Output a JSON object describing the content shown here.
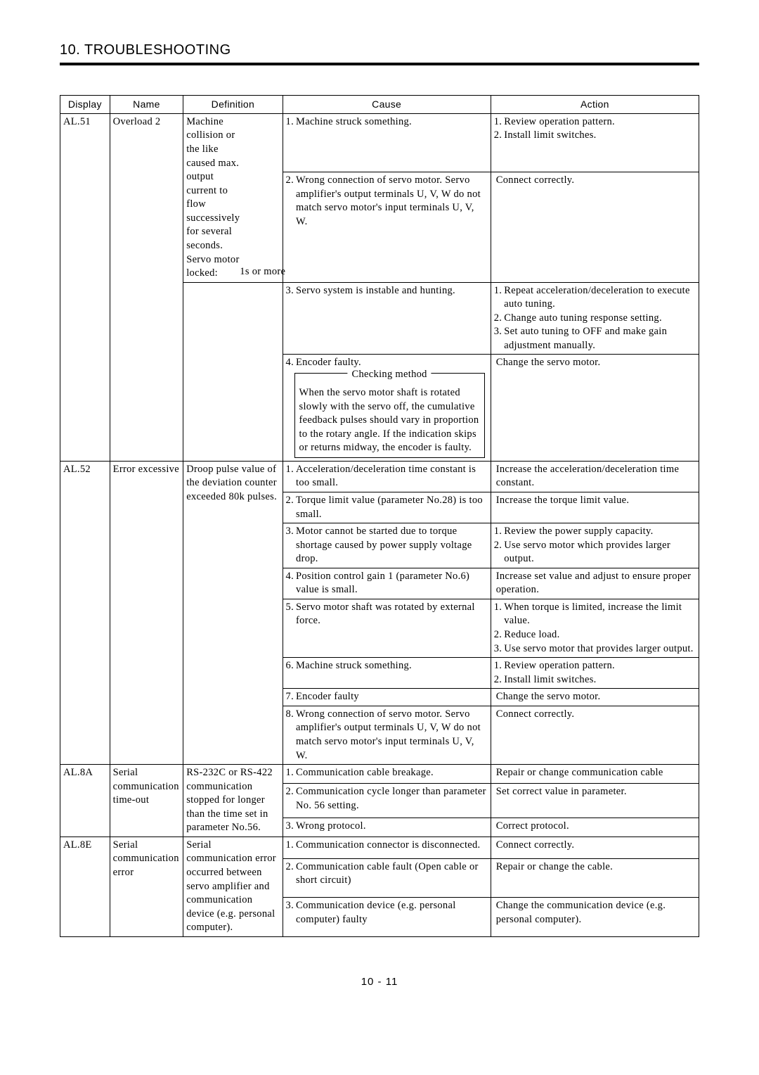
{
  "page": {
    "title": "10. TROUBLESHOOTING",
    "page_number": "10 -  11"
  },
  "columns": {
    "display": "Display",
    "name": "Name",
    "definition": "Definition",
    "cause": "Cause",
    "action": "Action"
  },
  "colors": {
    "background": "#ffffff",
    "text": "#000000",
    "rule": "#000000"
  },
  "fonts": {
    "body_family": "Times New Roman",
    "heading_family": "Arial",
    "body_size_pt": 11,
    "heading_size_pt": 15
  },
  "rows": {
    "al51": {
      "display": "AL.51",
      "name": "Overload 2",
      "definition_main": "Machine collision or the like caused max. output current to flow successively for several seconds. Servo motor locked:",
      "definition_suffix": "1s or more",
      "causes": {
        "c1": {
          "num": "1.",
          "text": "Machine struck something."
        },
        "c2": {
          "num": "2.",
          "text": "Wrong connection of servo motor. Servo amplifier's output terminals U, V, W do not match servo motor's input terminals U, V, W."
        },
        "c3": {
          "num": "3.",
          "text": "Servo system is instable and hunting."
        },
        "c4": {
          "num": "4.",
          "text": "Encoder faulty."
        }
      },
      "check_box": {
        "title": "Checking method",
        "body": "When the servo motor shaft is rotated slowly with the servo off, the cumulative feedback pulses should vary in proportion to the rotary angle. If the indication skips or returns midway, the encoder is faulty."
      },
      "actions": {
        "a1": [
          {
            "num": "1.",
            "text": "Review operation pattern."
          },
          {
            "num": "2.",
            "text": "Install limit switches."
          }
        ],
        "a2": [
          {
            "num": "",
            "text": "Connect correctly."
          }
        ],
        "a3": [
          {
            "num": "1.",
            "text": "Repeat acceleration/deceleration to execute auto tuning."
          },
          {
            "num": "2.",
            "text": "Change auto tuning response setting."
          },
          {
            "num": "3.",
            "text": "Set auto tuning to OFF and make gain adjustment manually."
          }
        ],
        "a4": [
          {
            "num": "",
            "text": "Change the servo motor."
          }
        ]
      }
    },
    "al52": {
      "display": "AL.52",
      "name": "Error excessive",
      "definition": "Droop pulse value of the deviation counter exceeded 80k pulses.",
      "causes": {
        "c1": {
          "num": "1.",
          "text": "Acceleration/deceleration time constant is too small."
        },
        "c2": {
          "num": "2.",
          "text": "Torque limit value (parameter No.28) is too small."
        },
        "c3": {
          "num": "3.",
          "text": "Motor cannot be started due to torque shortage caused by power supply voltage drop."
        },
        "c4": {
          "num": "4.",
          "text": "Position control gain 1 (parameter No.6) value is small."
        },
        "c5": {
          "num": "5.",
          "text": "Servo motor shaft was rotated by external force."
        },
        "c6": {
          "num": "6.",
          "text": "Machine struck something."
        },
        "c7": {
          "num": "7.",
          "text": "Encoder faulty"
        },
        "c8": {
          "num": "8.",
          "text": "Wrong connection of servo motor. Servo amplifier's output terminals U, V, W do not match servo motor's input terminals U, V, W."
        }
      },
      "actions": {
        "a1": [
          {
            "num": "",
            "text": "Increase the acceleration/deceleration time constant."
          }
        ],
        "a2": [
          {
            "num": "",
            "text": "Increase the torque limit value."
          }
        ],
        "a3": [
          {
            "num": "1.",
            "text": "Review the power supply capacity."
          },
          {
            "num": "2.",
            "text": "Use servo motor which provides larger output."
          }
        ],
        "a4": [
          {
            "num": "",
            "text": "Increase set value and adjust to ensure proper operation."
          }
        ],
        "a5": [
          {
            "num": "1.",
            "text": "When torque is limited, increase the limit value."
          },
          {
            "num": "2.",
            "text": "Reduce load."
          },
          {
            "num": "3.",
            "text": "Use servo motor that provides larger output."
          }
        ],
        "a6": [
          {
            "num": "1.",
            "text": "Review operation pattern."
          },
          {
            "num": "2.",
            "text": "Install limit switches."
          }
        ],
        "a7": [
          {
            "num": "",
            "text": "Change the servo motor."
          }
        ],
        "a8": [
          {
            "num": "",
            "text": "Connect correctly."
          }
        ]
      }
    },
    "al8a": {
      "display": "AL.8A",
      "name": "Serial communication time-out",
      "definition": "RS-232C or RS-422 communication stopped for longer than the time set in parameter No.56.",
      "causes": {
        "c1": {
          "num": "1.",
          "text": "Communication cable breakage."
        },
        "c2": {
          "num": "2.",
          "text": "Communication cycle longer than parameter No. 56 setting."
        },
        "c3": {
          "num": "3.",
          "text": "Wrong protocol."
        }
      },
      "actions": {
        "a1": [
          {
            "num": "",
            "text": "Repair or change communication cable"
          }
        ],
        "a2": [
          {
            "num": "",
            "text": "Set correct value in parameter."
          }
        ],
        "a3": [
          {
            "num": "",
            "text": "Correct protocol."
          }
        ]
      }
    },
    "al8e": {
      "display": "AL.8E",
      "name": "Serial communication error",
      "definition": "Serial communication error occurred between servo amplifier and communication device (e.g. personal computer).",
      "causes": {
        "c1": {
          "num": "1.",
          "text": "Communication connector is disconnected."
        },
        "c2": {
          "num": "2.",
          "text": "Communication cable fault (Open cable or short circuit)"
        },
        "c3": {
          "num": "3.",
          "text": "Communication device (e.g. personal computer) faulty"
        }
      },
      "actions": {
        "a1": [
          {
            "num": "",
            "text": "Connect correctly."
          }
        ],
        "a2": [
          {
            "num": "",
            "text": "Repair or change the cable."
          }
        ],
        "a3": [
          {
            "num": "",
            "text": "Change the communication device (e.g. personal computer)."
          }
        ]
      }
    }
  }
}
